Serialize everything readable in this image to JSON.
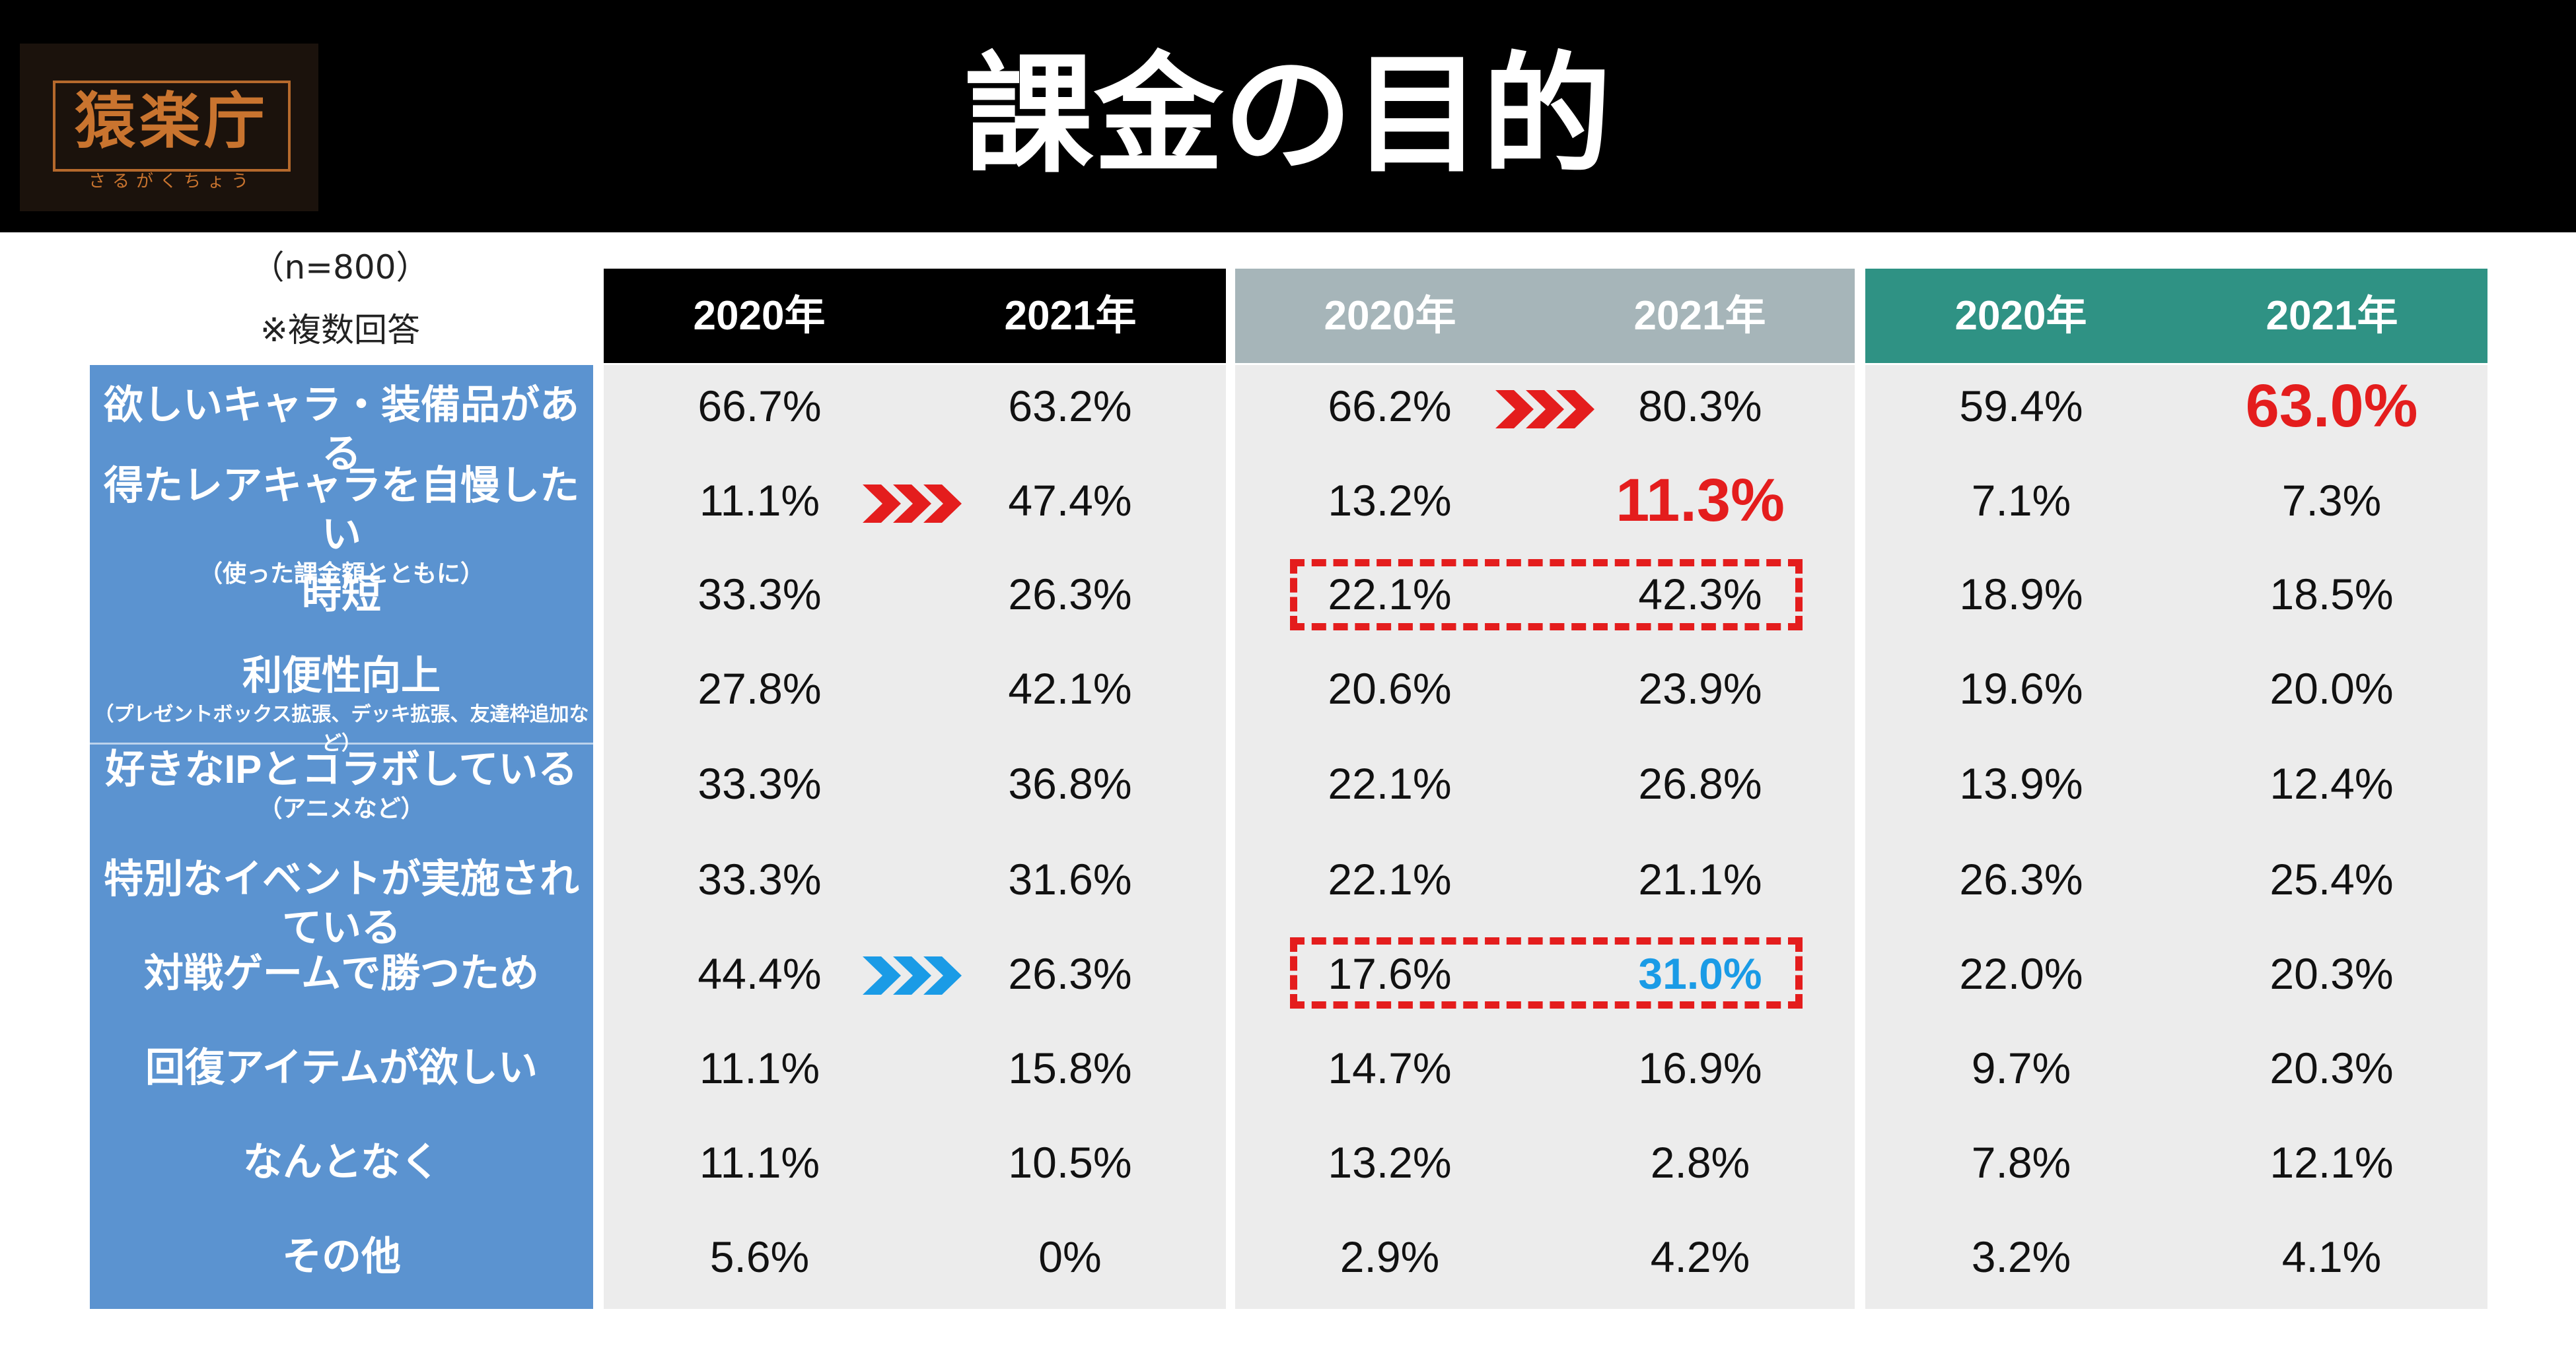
{
  "title": "課金の目的",
  "logo": {
    "kanji": "猿楽庁",
    "kana": "さるがくちょう"
  },
  "notes": {
    "sample": "（n=800）",
    "multiple": "※複数回答"
  },
  "colors": {
    "panel1_header": "#000000",
    "panel2_header": "#a6b5b9",
    "panel3_header": "#2f9284",
    "label_bg": "#5b93d0",
    "highlight_red": "#e41d1d",
    "highlight_blue": "#1a9be6"
  },
  "categories": [
    {
      "main": "欲しいキャラ・装備品がある"
    },
    {
      "main": "得たレアキャラを自慢したい",
      "sub": "（使った課金額とともに）"
    },
    {
      "main": "時短"
    },
    {
      "main": "利便性向上",
      "sub": "（プレゼントボックス拡張、デッキ拡張、友達枠追加など）"
    },
    {
      "main": "好きなIPとコラボしている",
      "sub": "（アニメなど）"
    },
    {
      "main": "特別なイベントが実施されている"
    },
    {
      "main": "対戦ゲームで勝つため"
    },
    {
      "main": "回復アイテムが欲しい"
    },
    {
      "main": "なんとなく"
    },
    {
      "main": "その他"
    }
  ],
  "chart_data": {
    "type": "table",
    "title": "課金の目的",
    "note": "（n=800） ※複数回答",
    "columns": [
      "2020年",
      "2021年",
      "2020年",
      "2021年",
      "2020年",
      "2021年"
    ],
    "panels": [
      {
        "header_color": "#000000",
        "years": [
          "2020年",
          "2021年"
        ],
        "values": [
          [
            "66.7%",
            "63.2%"
          ],
          [
            "11.1%",
            "47.4%"
          ],
          [
            "33.3%",
            "26.3%"
          ],
          [
            "27.8%",
            "42.1%"
          ],
          [
            "33.3%",
            "36.8%"
          ],
          [
            "33.3%",
            "31.6%"
          ],
          [
            "44.4%",
            "26.3%"
          ],
          [
            "11.1%",
            "15.8%"
          ],
          [
            "11.1%",
            "10.5%"
          ],
          [
            "5.6%",
            "0%"
          ]
        ]
      },
      {
        "header_color": "#a6b5b9",
        "years": [
          "2020年",
          "2021年"
        ],
        "values": [
          [
            "66.2%",
            "80.3%"
          ],
          [
            "13.2%",
            "11.3%"
          ],
          [
            "22.1%",
            "42.3%"
          ],
          [
            "20.6%",
            "23.9%"
          ],
          [
            "22.1%",
            "26.8%"
          ],
          [
            "22.1%",
            "21.1%"
          ],
          [
            "17.6%",
            "31.0%"
          ],
          [
            "14.7%",
            "16.9%"
          ],
          [
            "13.2%",
            "2.8%"
          ],
          [
            "2.9%",
            "4.2%"
          ]
        ]
      },
      {
        "header_color": "#2f9284",
        "years": [
          "2020年",
          "2021年"
        ],
        "values": [
          [
            "59.4%",
            "63.0%"
          ],
          [
            "7.1%",
            "7.3%"
          ],
          [
            "18.9%",
            "18.5%"
          ],
          [
            "19.6%",
            "20.0%"
          ],
          [
            "13.9%",
            "12.4%"
          ],
          [
            "26.3%",
            "25.4%"
          ],
          [
            "22.0%",
            "20.3%"
          ],
          [
            "9.7%",
            "20.3%"
          ],
          [
            "7.8%",
            "12.1%"
          ],
          [
            "3.2%",
            "4.1%"
          ]
        ]
      }
    ],
    "highlights": [
      {
        "panel": 1,
        "row": 1,
        "style": "arrow-red"
      },
      {
        "panel": 2,
        "row": 0,
        "style": "arrow-red"
      },
      {
        "panel": 1,
        "row": 6,
        "style": "arrow-blue"
      },
      {
        "panel": 2,
        "row": 2,
        "style": "dashed-box"
      },
      {
        "panel": 2,
        "row": 6,
        "style": "dashed-box"
      }
    ]
  }
}
